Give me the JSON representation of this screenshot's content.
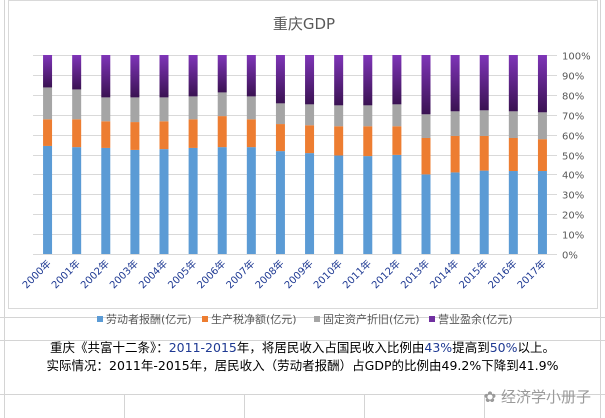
{
  "chart_data": {
    "type": "bar",
    "stacked": "percent",
    "title": "重庆GDP",
    "categories": [
      "2000年",
      "2001年",
      "2002年",
      "2003年",
      "2004年",
      "2005年",
      "2006年",
      "2007年",
      "2008年",
      "2009年",
      "2010年",
      "2011年",
      "2012年",
      "2013年",
      "2014年",
      "2015年",
      "2016年",
      "2017年"
    ],
    "series": [
      {
        "name": "劳动者报酬(亿元)",
        "color": "#5b9bd5",
        "values": [
          54.3,
          53.7,
          53.3,
          52.3,
          52.7,
          53.3,
          53.7,
          53.7,
          51.7,
          50.7,
          49.5,
          49.2,
          49.8,
          40.0,
          41.0,
          41.9,
          41.7,
          41.7
        ]
      },
      {
        "name": "生产税净额(亿元)",
        "color": "#ed7d31",
        "values": [
          13.4,
          14.0,
          13.4,
          14.0,
          14.0,
          14.4,
          15.6,
          14.0,
          13.6,
          14.0,
          14.7,
          15.0,
          14.4,
          18.3,
          18.3,
          17.4,
          16.6,
          16.0
        ]
      },
      {
        "name": "固定资产折旧(亿元)",
        "color": "#a5a5a5",
        "values": [
          16.0,
          15.0,
          12.0,
          12.4,
          12.0,
          11.5,
          11.9,
          11.5,
          10.4,
          10.5,
          10.5,
          10.5,
          11.0,
          11.9,
          12.4,
          12.9,
          13.4,
          13.5
        ]
      },
      {
        "name": "营业盈余(亿元)",
        "color": "#7030a0",
        "values": [
          16.3,
          17.3,
          21.3,
          21.3,
          21.3,
          20.8,
          18.8,
          20.8,
          24.3,
          24.8,
          25.3,
          25.3,
          24.8,
          29.8,
          28.3,
          27.8,
          28.3,
          28.8
        ]
      }
    ],
    "yaxis": {
      "position": "right",
      "ylim": [
        0,
        100
      ],
      "ticks": [
        "0%",
        "10%",
        "20%",
        "30%",
        "40%",
        "50%",
        "60%",
        "70%",
        "80%",
        "90%",
        "100%"
      ]
    },
    "grid": true,
    "legend": "bottom"
  },
  "note": {
    "line1": [
      {
        "t": "重庆《共富十二条》：",
        "hl": false
      },
      {
        "t": "2011-2015",
        "hl": true
      },
      {
        "t": "年，将居民收入占国民收入比例由",
        "hl": false
      },
      {
        "t": "43%",
        "hl": true
      },
      {
        "t": "提高到",
        "hl": false
      },
      {
        "t": "50%",
        "hl": true
      },
      {
        "t": "以上。",
        "hl": false
      }
    ],
    "line2": "实际情况：2011年-2015年，居民收入（劳动者报酬）占GDP的比例由49.2%下降到41.9%"
  },
  "watermark": "经济学小册子"
}
